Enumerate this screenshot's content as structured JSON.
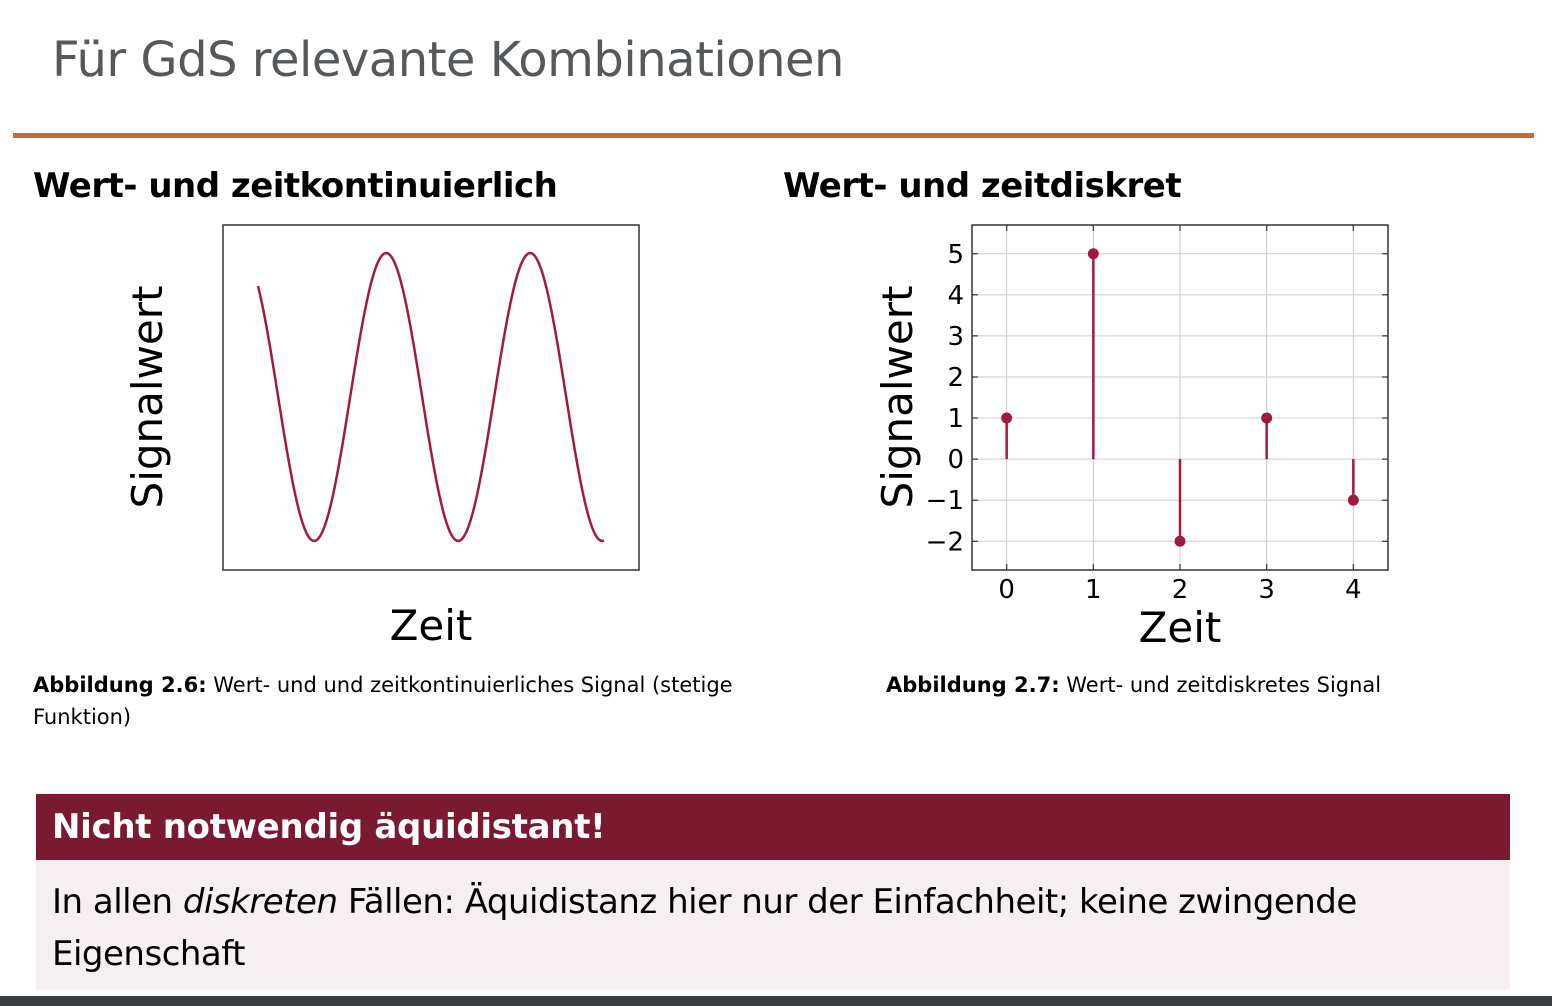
{
  "title": "Für GdS relevante Kombinationen",
  "left": {
    "heading": "Wert- und zeitkontinuierlich",
    "ylabel": "Signalwert",
    "xlabel": "Zeit",
    "caption_bold": "Abbildung 2.6:",
    "caption_text": " Wert- und und zeitkontinuierliches Signal (stetige Funktion)"
  },
  "right": {
    "heading": "Wert- und zeitdiskret",
    "caption_bold": "Abbildung 2.7:",
    "caption_text": " Wert- und zeitdiskretes Signal"
  },
  "chart_data": {
    "type": "stem",
    "x": [
      0,
      1,
      2,
      3,
      4
    ],
    "values": [
      1,
      5,
      -2,
      1,
      -1
    ],
    "xlabel": "Zeit",
    "ylabel": "Signalwert",
    "xticks": [
      "0",
      "1",
      "2",
      "3",
      "4"
    ],
    "yticks": [
      "5",
      "4",
      "3",
      "2",
      "1",
      "0",
      "−1",
      "−2"
    ],
    "xlim": [
      -0.4,
      4.4
    ],
    "ylim": [
      -2.7,
      5.7
    ],
    "grid": true,
    "color": "#a01c3c"
  },
  "note": {
    "heading": "Nicht notwendig äquidistant!",
    "body_pre": "In allen ",
    "body_italic": "diskreten",
    "body_post": " Fällen: Äquidistanz hier nur der Einfachheit; keine zwingende Eigenschaft"
  },
  "colors": {
    "accent": "#c8693a",
    "note_header": "#7a1a30",
    "note_body": "#f6eff1",
    "signal": "#a01c3c"
  }
}
